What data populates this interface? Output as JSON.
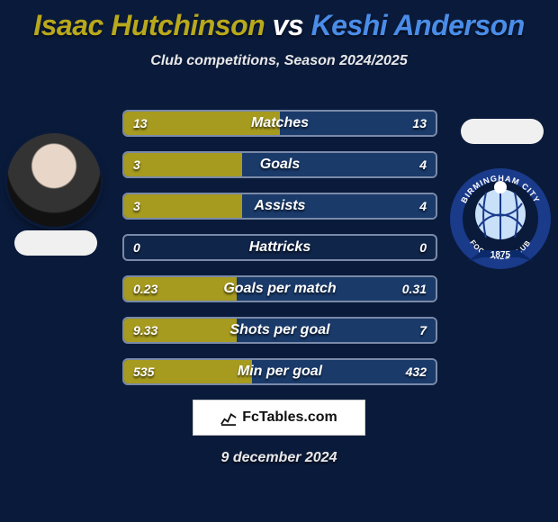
{
  "title_left": "Isaac Hutchinson",
  "title_vs": " vs ",
  "title_right": "Keshi Anderson",
  "title_color_left": "#b8a81c",
  "title_color_vs": "#ffffff",
  "title_color_right": "#4a8de8",
  "subtitle": "Club competitions, Season 2024/2025",
  "bars": {
    "left_fill_color": "#a69a1f",
    "right_fill_color": "#1a3a6a",
    "border_color": "#7a8aa8",
    "background_color": "#10254a",
    "label_fontsize": 16,
    "value_fontsize": 14,
    "rows": [
      {
        "label": "Matches",
        "left": "13",
        "right": "13",
        "left_pct": 50,
        "right_pct": 50
      },
      {
        "label": "Goals",
        "left": "3",
        "right": "4",
        "left_pct": 38,
        "right_pct": 62
      },
      {
        "label": "Assists",
        "left": "3",
        "right": "4",
        "left_pct": 38,
        "right_pct": 62
      },
      {
        "label": "Hattricks",
        "left": "0",
        "right": "0",
        "left_pct": 0,
        "right_pct": 0
      },
      {
        "label": "Goals per match",
        "left": "0.23",
        "right": "0.31",
        "left_pct": 36,
        "right_pct": 64
      },
      {
        "label": "Shots per goal",
        "left": "9.33",
        "right": "7",
        "left_pct": 36,
        "right_pct": 64
      },
      {
        "label": "Min per goal",
        "left": "535",
        "right": "432",
        "left_pct": 41,
        "right_pct": 59
      }
    ]
  },
  "crest": {
    "ring_color": "#1a3a8a",
    "name_top": "BIRMINGHAM CITY",
    "name_bottom": "FOOTBALL CLUB",
    "year": "1875",
    "globe_color": "#c8e0f8",
    "ribbon_color": "#0a2a6a"
  },
  "footer_brand": "FcTables.com",
  "footer_date": "9 december 2024",
  "background_color": "#0a1a3a"
}
